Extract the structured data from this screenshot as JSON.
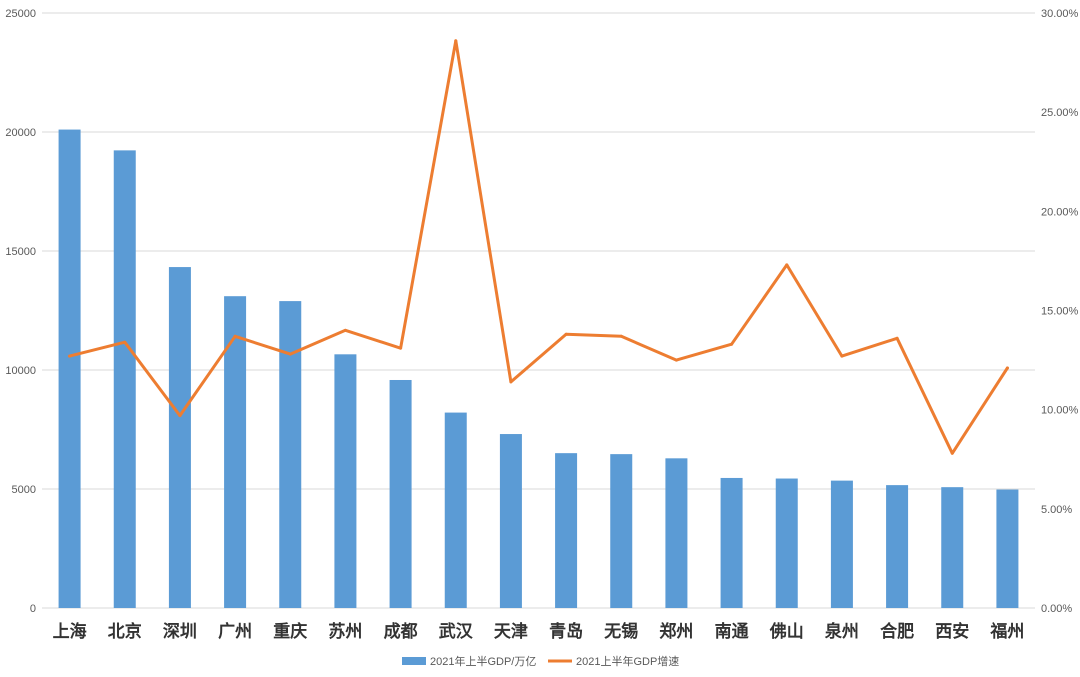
{
  "chart_data": {
    "type": "bar+line",
    "categories": [
      "上海",
      "北京",
      "深圳",
      "广州",
      "重庆",
      "苏州",
      "成都",
      "武汉",
      "天津",
      "青岛",
      "无锡",
      "郑州",
      "南通",
      "佛山",
      "泉州",
      "合肥",
      "西安",
      "福州"
    ],
    "series": [
      {
        "name": "2021年上半GDP/万亿",
        "type": "bar",
        "axis": "left",
        "color": "#5B9BD5",
        "values": [
          20102,
          19228,
          14325,
          13101,
          12895,
          10659,
          9580,
          8211,
          7309,
          6506,
          6465,
          6289,
          5464,
          5440,
          5352,
          5163,
          5077,
          4977
        ]
      },
      {
        "name": "2021上半年GDP增速",
        "type": "line",
        "axis": "right",
        "color": "#ED7D31",
        "values": [
          12.7,
          13.4,
          9.7,
          13.7,
          12.8,
          14.0,
          13.1,
          28.6,
          11.4,
          13.8,
          13.7,
          12.5,
          13.3,
          17.3,
          12.7,
          13.6,
          7.8,
          12.1
        ]
      }
    ],
    "y_left": {
      "ylim": [
        0,
        25000
      ],
      "ticks": [
        "0",
        "5000",
        "10000",
        "15000",
        "20000",
        "25000"
      ]
    },
    "y_right": {
      "ylim": [
        0,
        30
      ],
      "ticks": [
        "0.00%",
        "5.00%",
        "10.00%",
        "15.00%",
        "20.00%",
        "25.00%",
        "30.00%"
      ]
    },
    "grid": true,
    "legend_position": "bottom",
    "legend": [
      "2021年上半GDP/万亿",
      "2021上半年GDP增速"
    ]
  }
}
